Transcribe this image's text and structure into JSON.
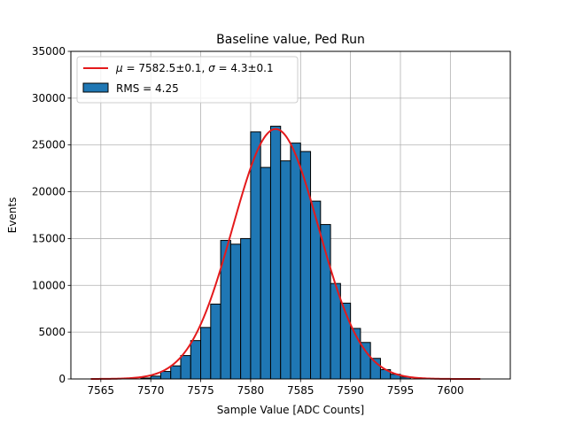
{
  "chart_data": {
    "type": "bar",
    "title": "Baseline value, Ped Run",
    "xlabel": "Sample Value [ADC Counts]",
    "ylabel": "Events",
    "xlim": [
      7562,
      7606
    ],
    "ylim": [
      0,
      35000
    ],
    "xticks": [
      7565,
      7570,
      7575,
      7580,
      7585,
      7590,
      7595,
      7600
    ],
    "yticks": [
      0,
      5000,
      10000,
      15000,
      20000,
      25000,
      30000,
      35000
    ],
    "grid": true,
    "legend_position": "upper-left",
    "histogram": {
      "name": "RMS = 4.25",
      "color": "#1f77b4",
      "edgecolor": "#000000",
      "bins": [
        {
          "x0": 7569.0,
          "x1": 7570.0,
          "count": 100
        },
        {
          "x0": 7570.0,
          "x1": 7571.0,
          "count": 300
        },
        {
          "x0": 7571.0,
          "x1": 7572.0,
          "count": 800
        },
        {
          "x0": 7572.0,
          "x1": 7573.0,
          "count": 1400
        },
        {
          "x0": 7573.0,
          "x1": 7574.0,
          "count": 2500
        },
        {
          "x0": 7574.0,
          "x1": 7575.0,
          "count": 4100
        },
        {
          "x0": 7575.0,
          "x1": 7576.0,
          "count": 5500
        },
        {
          "x0": 7576.0,
          "x1": 7577.0,
          "count": 8000
        },
        {
          "x0": 7577.0,
          "x1": 7578.0,
          "count": 14800
        },
        {
          "x0": 7578.0,
          "x1": 7579.0,
          "count": 14400
        },
        {
          "x0": 7579.0,
          "x1": 7580.0,
          "count": 15000
        },
        {
          "x0": 7580.0,
          "x1": 7581.0,
          "count": 26400
        },
        {
          "x0": 7581.0,
          "x1": 7582.0,
          "count": 22600
        },
        {
          "x0": 7582.0,
          "x1": 7583.0,
          "count": 27000
        },
        {
          "x0": 7583.0,
          "x1": 7584.0,
          "count": 23300
        },
        {
          "x0": 7584.0,
          "x1": 7585.0,
          "count": 25200
        },
        {
          "x0": 7585.0,
          "x1": 7586.0,
          "count": 24300
        },
        {
          "x0": 7586.0,
          "x1": 7587.0,
          "count": 19000
        },
        {
          "x0": 7587.0,
          "x1": 7588.0,
          "count": 16500
        },
        {
          "x0": 7588.0,
          "x1": 7589.0,
          "count": 10200
        },
        {
          "x0": 7589.0,
          "x1": 7590.0,
          "count": 8100
        },
        {
          "x0": 7590.0,
          "x1": 7591.0,
          "count": 5400
        },
        {
          "x0": 7591.0,
          "x1": 7592.0,
          "count": 3900
        },
        {
          "x0": 7592.0,
          "x1": 7593.0,
          "count": 2200
        },
        {
          "x0": 7593.0,
          "x1": 7594.0,
          "count": 1000
        },
        {
          "x0": 7594.0,
          "x1": 7595.0,
          "count": 500
        },
        {
          "x0": 7595.0,
          "x1": 7596.0,
          "count": 200
        }
      ]
    },
    "fit": {
      "type": "gaussian",
      "label_mu_value": "7582.5±0.1",
      "label_sigma_value": "4.3±0.1",
      "mu": 7582.5,
      "sigma": 4.3,
      "amplitude": 26700,
      "x_range": [
        7564,
        7603
      ],
      "color": "#e41a1c"
    }
  }
}
